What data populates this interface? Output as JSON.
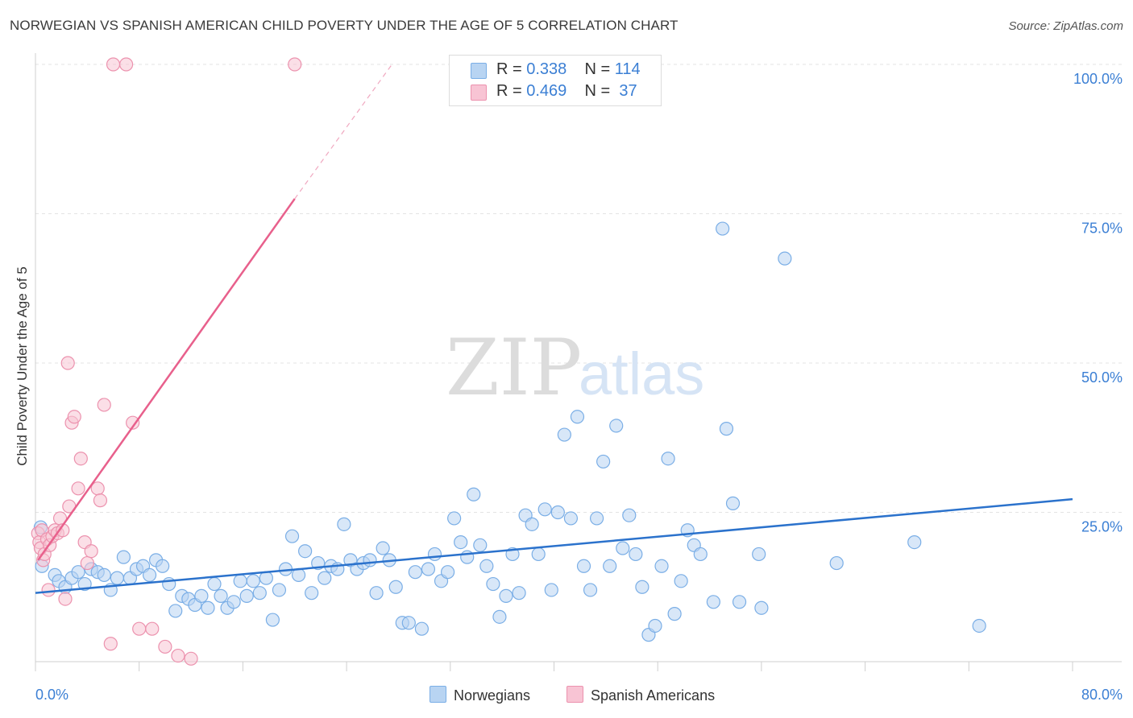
{
  "title": "NORWEGIAN VS SPANISH AMERICAN CHILD POVERTY UNDER THE AGE OF 5 CORRELATION CHART",
  "source": "Source: ZipAtlas.com",
  "watermark": {
    "zip": "ZIP",
    "atlas": "atlas"
  },
  "legend_stats": [
    {
      "r_label": "R =",
      "r_value": "0.338",
      "n_label": "N =",
      "n_value": "114"
    },
    {
      "r_label": "R =",
      "r_value": "0.469",
      "n_label": "N =",
      "n_value": "37"
    }
  ],
  "colors": {
    "blue_fill": "#b8d4f2",
    "blue_stroke": "#7aaee6",
    "blue_line": "#2b72cc",
    "pink_fill": "#f8c4d4",
    "pink_stroke": "#ec92ae",
    "pink_line": "#e8608c",
    "axis_text": "#3b7fd4",
    "grid": "#e3e3e3"
  },
  "chart_data": {
    "type": "scatter",
    "title": "NORWEGIAN VS SPANISH AMERICAN CHILD POVERTY UNDER THE AGE OF 5 CORRELATION CHART",
    "xlabel": "",
    "ylabel": "Child Poverty Under the Age of 5",
    "xlim": [
      0,
      80
    ],
    "ylim": [
      0,
      100
    ],
    "x_tick_labels": [
      "0.0%",
      "80.0%"
    ],
    "y_tick_labels": [
      "25.0%",
      "50.0%",
      "75.0%",
      "100.0%"
    ],
    "y_ticks": [
      25,
      50,
      75,
      100
    ],
    "grid": true,
    "legend_position": "bottom",
    "series": [
      {
        "name": "Norwegians",
        "color": "#b8d4f2",
        "r": 0.338,
        "n": 114,
        "trend": {
          "x": [
            0,
            80
          ],
          "y": [
            11.5,
            27.2
          ],
          "dashed_to": null
        },
        "points": [
          [
            0.4,
            22.5
          ],
          [
            0.5,
            16.0
          ],
          [
            1.5,
            14.5
          ],
          [
            1.8,
            13.5
          ],
          [
            2.3,
            12.5
          ],
          [
            2.8,
            14.0
          ],
          [
            3.3,
            15.0
          ],
          [
            3.8,
            13.0
          ],
          [
            4.3,
            15.5
          ],
          [
            4.8,
            15.0
          ],
          [
            5.3,
            14.5
          ],
          [
            5.8,
            12.0
          ],
          [
            6.3,
            14.0
          ],
          [
            6.8,
            17.5
          ],
          [
            7.3,
            14.0
          ],
          [
            7.8,
            15.5
          ],
          [
            8.3,
            16.0
          ],
          [
            8.8,
            14.5
          ],
          [
            9.3,
            17.0
          ],
          [
            9.8,
            16.0
          ],
          [
            10.3,
            13.0
          ],
          [
            10.8,
            8.5
          ],
          [
            11.3,
            11.0
          ],
          [
            11.8,
            10.5
          ],
          [
            12.3,
            9.5
          ],
          [
            12.8,
            11.0
          ],
          [
            13.3,
            9.0
          ],
          [
            13.8,
            13.0
          ],
          [
            14.3,
            11.0
          ],
          [
            14.8,
            9.0
          ],
          [
            15.3,
            10.0
          ],
          [
            15.8,
            13.5
          ],
          [
            16.3,
            11.0
          ],
          [
            16.8,
            13.5
          ],
          [
            17.3,
            11.5
          ],
          [
            17.8,
            14.0
          ],
          [
            18.3,
            7.0
          ],
          [
            18.8,
            12.0
          ],
          [
            19.3,
            15.5
          ],
          [
            19.8,
            21.0
          ],
          [
            20.3,
            14.5
          ],
          [
            20.8,
            18.5
          ],
          [
            21.3,
            11.5
          ],
          [
            21.8,
            16.5
          ],
          [
            22.3,
            14.0
          ],
          [
            22.8,
            16.0
          ],
          [
            23.3,
            15.5
          ],
          [
            23.8,
            23.0
          ],
          [
            24.3,
            17.0
          ],
          [
            24.8,
            15.5
          ],
          [
            25.3,
            16.5
          ],
          [
            25.8,
            17.0
          ],
          [
            26.3,
            11.5
          ],
          [
            26.8,
            19.0
          ],
          [
            27.3,
            17.0
          ],
          [
            27.8,
            12.5
          ],
          [
            28.3,
            6.5
          ],
          [
            28.8,
            6.5
          ],
          [
            29.3,
            15.0
          ],
          [
            29.8,
            5.5
          ],
          [
            30.3,
            15.5
          ],
          [
            30.8,
            18.0
          ],
          [
            31.3,
            13.5
          ],
          [
            31.8,
            15.0
          ],
          [
            32.3,
            24.0
          ],
          [
            32.8,
            20.0
          ],
          [
            33.3,
            17.5
          ],
          [
            33.8,
            28.0
          ],
          [
            34.3,
            19.5
          ],
          [
            34.8,
            16.0
          ],
          [
            35.3,
            13.0
          ],
          [
            35.8,
            7.5
          ],
          [
            36.3,
            11.0
          ],
          [
            36.8,
            18.0
          ],
          [
            37.3,
            11.5
          ],
          [
            37.8,
            24.5
          ],
          [
            38.3,
            23.0
          ],
          [
            38.8,
            18.0
          ],
          [
            39.3,
            25.5
          ],
          [
            39.8,
            12.0
          ],
          [
            40.3,
            25.0
          ],
          [
            40.8,
            38.0
          ],
          [
            41.3,
            24.0
          ],
          [
            41.8,
            41.0
          ],
          [
            42.3,
            16.0
          ],
          [
            42.8,
            12.0
          ],
          [
            43.3,
            24.0
          ],
          [
            43.8,
            33.5
          ],
          [
            44.3,
            16.0
          ],
          [
            44.8,
            39.5
          ],
          [
            45.3,
            19.0
          ],
          [
            45.8,
            24.5
          ],
          [
            46.3,
            18.0
          ],
          [
            46.8,
            12.5
          ],
          [
            47.3,
            4.5
          ],
          [
            47.8,
            6.0
          ],
          [
            48.3,
            16.0
          ],
          [
            48.8,
            34.0
          ],
          [
            49.3,
            8.0
          ],
          [
            49.8,
            13.5
          ],
          [
            50.3,
            22.0
          ],
          [
            50.8,
            19.5
          ],
          [
            51.3,
            18.0
          ],
          [
            52.3,
            10.0
          ],
          [
            53.0,
            72.5
          ],
          [
            53.3,
            39.0
          ],
          [
            53.8,
            26.5
          ],
          [
            54.3,
            10.0
          ],
          [
            55.8,
            18.0
          ],
          [
            56.0,
            9.0
          ],
          [
            57.8,
            67.5
          ],
          [
            61.8,
            16.5
          ],
          [
            67.8,
            20.0
          ],
          [
            72.8,
            6.0
          ]
        ]
      },
      {
        "name": "Spanish Americans",
        "color": "#f8c4d4",
        "r": 0.469,
        "n": 37,
        "trend": {
          "x": [
            0.2,
            20
          ],
          "y": [
            17.0,
            77.5
          ],
          "dashed_to": [
            27.5,
            100
          ]
        },
        "points": [
          [
            0.2,
            21.5
          ],
          [
            0.3,
            20.0
          ],
          [
            0.4,
            19.0
          ],
          [
            0.5,
            22.0
          ],
          [
            0.6,
            17.0
          ],
          [
            0.7,
            18.0
          ],
          [
            0.9,
            20.5
          ],
          [
            1.1,
            19.5
          ],
          [
            1.3,
            21.0
          ],
          [
            1.5,
            22.0
          ],
          [
            1.7,
            21.5
          ],
          [
            1.9,
            24.0
          ],
          [
            2.1,
            22.0
          ],
          [
            2.3,
            10.5
          ],
          [
            2.5,
            50.0
          ],
          [
            2.6,
            26.0
          ],
          [
            2.8,
            40.0
          ],
          [
            3.0,
            41.0
          ],
          [
            3.3,
            29.0
          ],
          [
            3.5,
            34.0
          ],
          [
            3.8,
            20.0
          ],
          [
            4.0,
            16.5
          ],
          [
            4.3,
            18.5
          ],
          [
            4.8,
            29.0
          ],
          [
            5.0,
            27.0
          ],
          [
            5.3,
            43.0
          ],
          [
            5.8,
            3.0
          ],
          [
            6.0,
            100.0
          ],
          [
            7.0,
            100.0
          ],
          [
            7.5,
            40.0
          ],
          [
            8.0,
            5.5
          ],
          [
            9.0,
            5.5
          ],
          [
            10.0,
            2.5
          ],
          [
            11.0,
            1.0
          ],
          [
            12.0,
            0.5
          ],
          [
            20.0,
            100.0
          ],
          [
            1.0,
            12.0
          ]
        ]
      }
    ]
  }
}
